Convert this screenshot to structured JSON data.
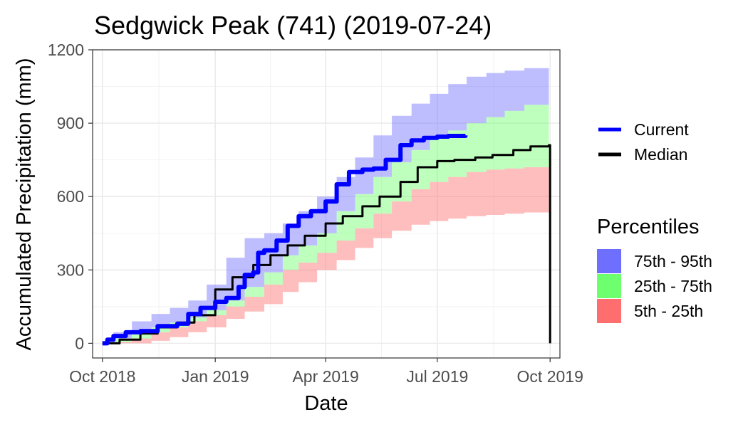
{
  "chart_data": {
    "type": "area",
    "title": "Sedgwick Peak (741) (2019-07-24)",
    "xlabel": "Date",
    "ylabel": "Accumulated Precipitation (mm)",
    "xlim": [
      "2018-09-23",
      "2019-10-09"
    ],
    "ylim": [
      -60,
      1200
    ],
    "x_ticks": [
      {
        "date": "2018-10-01",
        "label": "Oct 2018"
      },
      {
        "date": "2019-01-01",
        "label": "Jan 2019"
      },
      {
        "date": "2019-04-01",
        "label": "Apr 2019"
      },
      {
        "date": "2019-07-01",
        "label": "Jul 2019"
      },
      {
        "date": "2019-10-01",
        "label": "Oct 2019"
      }
    ],
    "y_ticks": [
      0,
      300,
      600,
      900,
      1200
    ],
    "grid": true,
    "bands": [
      {
        "name": "75th - 95th",
        "color": "#6e6eff",
        "opacity": 0.45,
        "x": [
          "2018-10-01",
          "2018-10-10",
          "2018-10-25",
          "2018-11-10",
          "2018-11-25",
          "2018-12-10",
          "2018-12-25",
          "2019-01-10",
          "2019-01-25",
          "2019-02-10",
          "2019-02-25",
          "2019-03-10",
          "2019-03-25",
          "2019-04-10",
          "2019-04-25",
          "2019-05-10",
          "2019-05-25",
          "2019-06-10",
          "2019-06-25",
          "2019-07-10",
          "2019-07-25",
          "2019-08-10",
          "2019-08-25",
          "2019-09-10",
          "2019-09-30"
        ],
        "lower": [
          0,
          20,
          45,
          65,
          85,
          105,
          135,
          175,
          230,
          290,
          360,
          400,
          450,
          540,
          610,
          680,
          740,
          790,
          840,
          870,
          900,
          925,
          950,
          975,
          1000
        ],
        "upper": [
          5,
          45,
          90,
          120,
          145,
          175,
          240,
          350,
          430,
          450,
          490,
          540,
          600,
          680,
          760,
          850,
          930,
          980,
          1020,
          1060,
          1090,
          1105,
          1115,
          1125,
          1145
        ]
      },
      {
        "name": "25th - 75th",
        "color": "#6eff6e",
        "opacity": 0.45,
        "x": [
          "2018-10-01",
          "2018-10-10",
          "2018-10-25",
          "2018-11-10",
          "2018-11-25",
          "2018-12-10",
          "2018-12-25",
          "2019-01-10",
          "2019-01-25",
          "2019-02-10",
          "2019-02-25",
          "2019-03-10",
          "2019-03-25",
          "2019-04-10",
          "2019-04-25",
          "2019-05-10",
          "2019-05-25",
          "2019-06-10",
          "2019-06-25",
          "2019-07-10",
          "2019-07-25",
          "2019-08-10",
          "2019-08-25",
          "2019-09-10",
          "2019-09-30"
        ],
        "lower": [
          0,
          5,
          20,
          45,
          65,
          90,
          115,
          150,
          190,
          240,
          300,
          330,
          370,
          420,
          470,
          530,
          580,
          630,
          660,
          680,
          700,
          710,
          715,
          720,
          725
        ],
        "upper": [
          0,
          20,
          45,
          65,
          85,
          105,
          135,
          175,
          230,
          290,
          360,
          400,
          450,
          540,
          610,
          680,
          740,
          790,
          840,
          870,
          900,
          925,
          950,
          975,
          1000
        ]
      },
      {
        "name": "5th - 25th",
        "color": "#ff6e6e",
        "opacity": 0.45,
        "x": [
          "2018-10-01",
          "2018-10-10",
          "2018-10-25",
          "2018-11-10",
          "2018-11-25",
          "2018-12-10",
          "2018-12-25",
          "2019-01-10",
          "2019-01-25",
          "2019-02-10",
          "2019-02-25",
          "2019-03-10",
          "2019-03-25",
          "2019-04-10",
          "2019-04-25",
          "2019-05-10",
          "2019-05-25",
          "2019-06-10",
          "2019-06-25",
          "2019-07-10",
          "2019-07-25",
          "2019-08-10",
          "2019-08-25",
          "2019-09-10",
          "2019-09-30"
        ],
        "lower": [
          0,
          0,
          0,
          10,
          25,
          45,
          65,
          100,
          130,
          160,
          210,
          250,
          300,
          340,
          390,
          430,
          460,
          485,
          500,
          510,
          520,
          525,
          530,
          535,
          540
        ],
        "upper": [
          0,
          5,
          20,
          45,
          65,
          90,
          115,
          150,
          190,
          240,
          300,
          330,
          370,
          420,
          470,
          530,
          580,
          630,
          660,
          680,
          700,
          710,
          715,
          720,
          725
        ]
      }
    ],
    "series": [
      {
        "name": "Current",
        "color": "#0000ff",
        "x": [
          "2018-10-01",
          "2018-10-05",
          "2018-10-10",
          "2018-10-20",
          "2018-11-01",
          "2018-11-15",
          "2018-12-01",
          "2018-12-10",
          "2018-12-20",
          "2019-01-01",
          "2019-01-10",
          "2019-01-20",
          "2019-01-25",
          "2019-02-01",
          "2019-02-05",
          "2019-02-10",
          "2019-02-20",
          "2019-03-01",
          "2019-03-10",
          "2019-03-20",
          "2019-04-01",
          "2019-04-10",
          "2019-04-20",
          "2019-05-01",
          "2019-05-10",
          "2019-05-20",
          "2019-06-01",
          "2019-06-10",
          "2019-06-20",
          "2019-07-01",
          "2019-07-10",
          "2019-07-24"
        ],
        "y": [
          0,
          15,
          30,
          45,
          50,
          70,
          80,
          120,
          145,
          170,
          185,
          230,
          280,
          290,
          370,
          380,
          420,
          480,
          520,
          540,
          580,
          650,
          700,
          710,
          715,
          750,
          810,
          830,
          840,
          845,
          848,
          850
        ]
      },
      {
        "name": "Median",
        "color": "#000000",
        "x": [
          "2018-10-01",
          "2018-10-15",
          "2018-11-01",
          "2018-11-15",
          "2018-12-01",
          "2018-12-15",
          "2019-01-01",
          "2019-01-15",
          "2019-02-01",
          "2019-02-15",
          "2019-03-01",
          "2019-03-15",
          "2019-04-01",
          "2019-04-15",
          "2019-05-01",
          "2019-05-15",
          "2019-06-01",
          "2019-06-15",
          "2019-07-01",
          "2019-07-15",
          "2019-08-01",
          "2019-08-15",
          "2019-09-01",
          "2019-09-15",
          "2019-09-30",
          "2019-10-01"
        ],
        "y": [
          0,
          15,
          40,
          65,
          85,
          115,
          220,
          270,
          320,
          360,
          400,
          440,
          490,
          520,
          560,
          600,
          660,
          720,
          745,
          750,
          760,
          770,
          790,
          805,
          810,
          0
        ]
      }
    ],
    "legend": {
      "position": "right",
      "lines_title": "",
      "lines": [
        {
          "label": "Current",
          "color": "#0000ff"
        },
        {
          "label": "Median",
          "color": "#000000"
        }
      ],
      "fills_title": "Percentiles",
      "fills": [
        {
          "label": "75th - 95th",
          "color": "#6e6eff"
        },
        {
          "label": "25th - 75th",
          "color": "#6eff6e"
        },
        {
          "label": "5th - 25th",
          "color": "#ff6e6e"
        }
      ]
    }
  }
}
